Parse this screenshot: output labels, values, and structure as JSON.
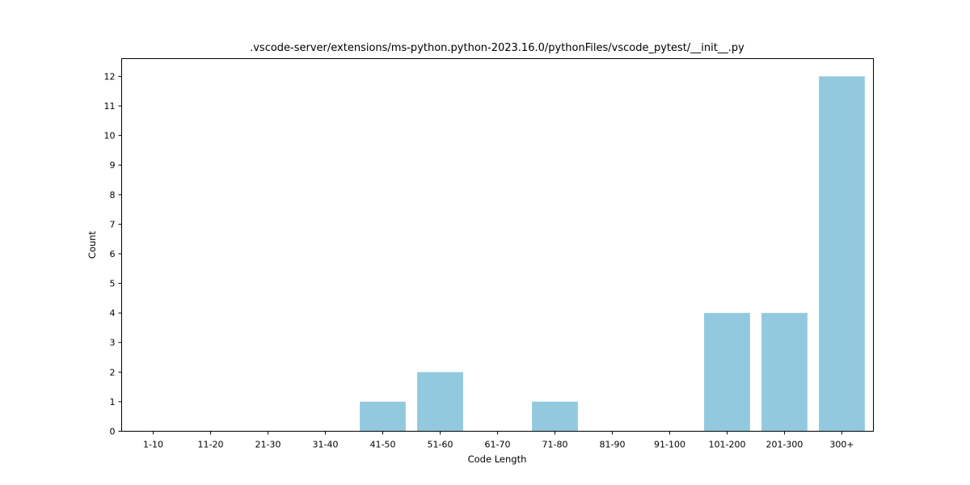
{
  "chart_data": {
    "type": "bar",
    "title": ".vscode-server/extensions/ms-python.python-2023.16.0/pythonFiles/vscode_pytest/__init__.py",
    "xlabel": "Code Length",
    "ylabel": "Count",
    "categories": [
      "1-10",
      "11-20",
      "21-30",
      "31-40",
      "41-50",
      "51-60",
      "61-70",
      "71-80",
      "81-90",
      "91-100",
      "101-200",
      "201-300",
      "300+"
    ],
    "values": [
      0,
      0,
      0,
      0,
      1,
      2,
      0,
      1,
      0,
      0,
      4,
      4,
      12
    ],
    "ylim": [
      0,
      12.6
    ],
    "yticks": [
      0,
      1,
      2,
      3,
      4,
      5,
      6,
      7,
      8,
      9,
      10,
      11,
      12
    ],
    "grid": false,
    "legend": "none",
    "bar_color": "#92c9df"
  }
}
